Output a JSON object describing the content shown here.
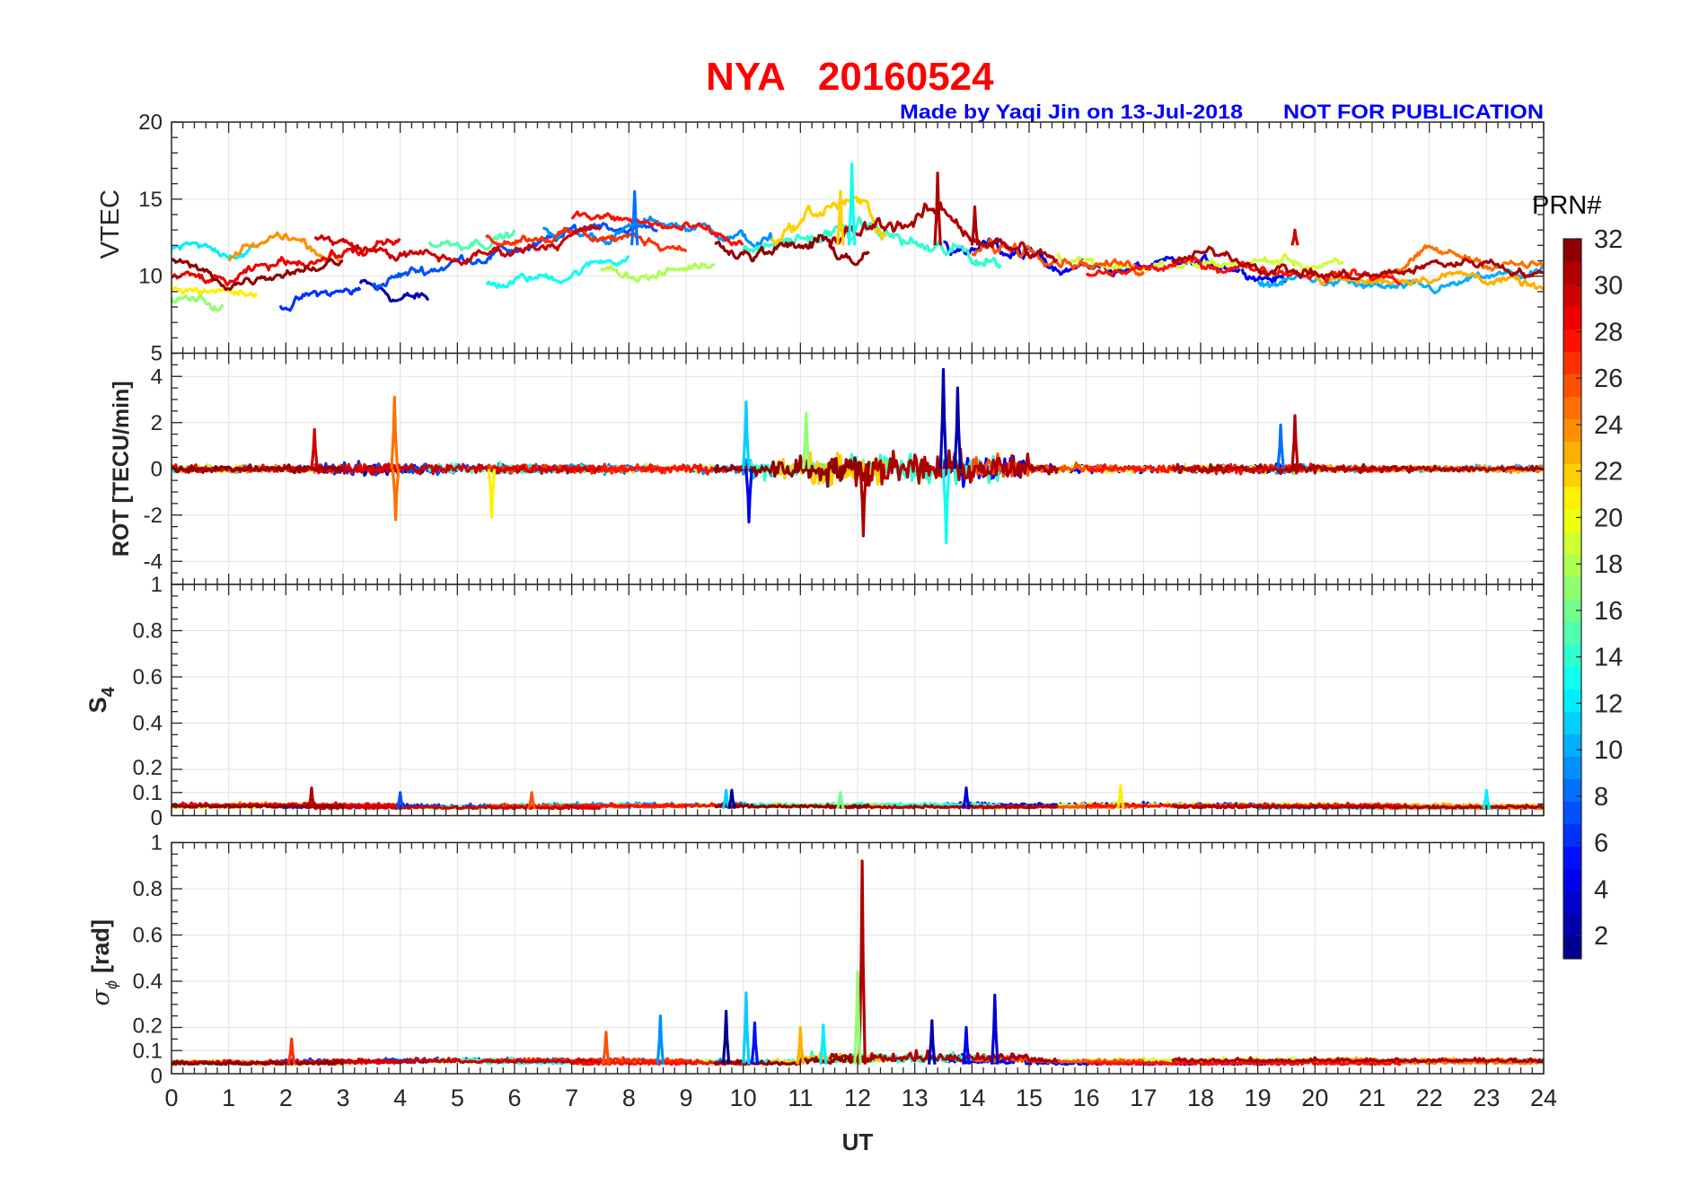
{
  "chart_data": {
    "type": "line",
    "title": {
      "station": "NYA",
      "date": "20160524"
    },
    "credit": "Made by Yaqi Jin on 13-Jul-2018",
    "notice": "NOT FOR PUBLICATION",
    "xlabel": "UT",
    "xlim": [
      0,
      24
    ],
    "xticks": [
      0,
      1,
      2,
      3,
      4,
      5,
      6,
      7,
      8,
      9,
      10,
      11,
      12,
      13,
      14,
      15,
      16,
      17,
      18,
      19,
      20,
      21,
      22,
      23,
      24
    ],
    "grid": true,
    "panels": [
      {
        "key": "vtec",
        "ylabel": "VTEC",
        "ylim": [
          5,
          20
        ],
        "yticks": [
          5,
          10,
          15,
          20
        ]
      },
      {
        "key": "rot",
        "ylabel": "ROT [TECU/min]",
        "ylim": [
          -5,
          5
        ],
        "yticks": [
          -4,
          -2,
          0,
          2,
          4
        ]
      },
      {
        "key": "s4",
        "ylabel": "S",
        "ylabel_sub": "4",
        "ylim": [
          0,
          1
        ],
        "yticks": [
          0,
          0.1,
          0.2,
          0.4,
          0.6,
          0.8,
          1
        ]
      },
      {
        "key": "sigma",
        "ylabel": "σ",
        "ylabel_sub": "ϕ",
        "ylabel_unit": "[rad]",
        "ylim": [
          0,
          1
        ],
        "yticks": [
          0,
          0.1,
          0.2,
          0.4,
          0.6,
          0.8,
          1
        ]
      }
    ],
    "colorbar": {
      "label": "PRN#",
      "clim": [
        1,
        32
      ],
      "ticks": [
        2,
        4,
        6,
        8,
        10,
        12,
        14,
        16,
        18,
        20,
        22,
        24,
        26,
        28,
        30,
        32
      ],
      "levels": 32
    },
    "series": [
      {
        "prn": 2,
        "t": [
          3.3,
          4.5
        ],
        "vtec": [
          9.5,
          8.6,
          8.5
        ]
      },
      {
        "prn": 4,
        "t": [
          13.5,
          19.5
        ],
        "vtec": [
          12,
          11.5,
          10.8,
          10.5,
          10.6,
          10.8,
          9.8
        ]
      },
      {
        "prn": 6,
        "t": [
          1.9,
          3.3
        ],
        "vtec": [
          8.2,
          8.8,
          9.0
        ]
      },
      {
        "prn": 7,
        "t": [
          3.5,
          8.5
        ],
        "vtec": [
          9.5,
          10.5,
          11.5,
          12,
          13.5,
          13
        ]
      },
      {
        "prn": 9,
        "t": [
          6.5,
          10.5
        ],
        "vtec": [
          13,
          12.5,
          13.5,
          13,
          12
        ]
      },
      {
        "prn": 10,
        "t": [
          19,
          24
        ],
        "vtec": [
          9.5,
          9.8,
          9.2,
          9,
          9.8,
          10.2
        ]
      },
      {
        "prn": 12,
        "t": [
          0,
          1.5
        ],
        "vtec": [
          12,
          11.5,
          11.8
        ]
      },
      {
        "prn": 13,
        "t": [
          5.5,
          8
        ],
        "vtec": [
          9.5,
          10,
          11.5
        ]
      },
      {
        "prn": 14,
        "t": [
          10,
          14.5
        ],
        "vtec": [
          11.5,
          12.5,
          13,
          11.5,
          11
        ]
      },
      {
        "prn": 15,
        "t": [
          4.5,
          6
        ],
        "vtec": [
          12,
          12.8
        ]
      },
      {
        "prn": 17,
        "t": [
          0,
          0.9
        ],
        "vtec": [
          8.7,
          8
        ]
      },
      {
        "prn": 18,
        "t": [
          7.5,
          9.5
        ],
        "vtec": [
          10.5,
          10,
          11
        ]
      },
      {
        "prn": 19,
        "t": [
          15.5,
          20.5
        ],
        "vtec": [
          11.5,
          10.8,
          10.5,
          10.8,
          11,
          10.5
        ]
      },
      {
        "prn": 21,
        "t": [
          0,
          1.5
        ],
        "vtec": [
          9,
          9.2,
          8.8
        ]
      },
      {
        "prn": 22,
        "t": [
          10.5,
          12.5
        ],
        "vtec": [
          12.5,
          14,
          15,
          13
        ]
      },
      {
        "prn": 23,
        "t": [
          20,
          24
        ],
        "vtec": [
          9.8,
          9.6,
          10.2,
          10,
          9
        ]
      },
      {
        "prn": 24,
        "t": [
          1,
          3
        ],
        "vtec": [
          11,
          12.8,
          11
        ]
      },
      {
        "prn": 25,
        "t": [
          21,
          24
        ],
        "vtec": [
          10,
          11.5,
          11,
          10.5
        ]
      },
      {
        "prn": 26,
        "t": [
          14,
          17
        ],
        "vtec": [
          11.5,
          12,
          11,
          10.5
        ]
      },
      {
        "prn": 27,
        "t": [
          5.5,
          9
        ],
        "vtec": [
          12.5,
          12.8,
          12.5,
          12
        ]
      },
      {
        "prn": 28,
        "t": [
          7,
          10
        ],
        "vtec": [
          14,
          13.5,
          13,
          12
        ]
      },
      {
        "prn": 29,
        "t": [
          0,
          4
        ],
        "vtec": [
          10,
          9.5,
          11,
          11.5,
          12
        ]
      },
      {
        "prn": 28,
        "t": [
          16,
          21.5
        ],
        "vtec": [
          10,
          10.5,
          10.8,
          10.5,
          10.2,
          9.8
        ]
      },
      {
        "prn": 30,
        "t": [
          2.5,
          7.5
        ],
        "vtec": [
          12.5,
          11.5,
          11,
          12,
          13
        ]
      },
      {
        "prn": 31,
        "t": [
          11.5,
          15.5
        ],
        "vtec": [
          12,
          13.5,
          14,
          12,
          11
        ]
      },
      {
        "prn": 32,
        "t": [
          0,
          3
        ],
        "vtec": [
          11,
          9.5,
          10.5,
          11
        ]
      },
      {
        "prn": 32,
        "t": [
          9.5,
          12.2
        ],
        "vtec": [
          12,
          11.5,
          12,
          11
        ]
      },
      {
        "prn": 31,
        "t": [
          17.5,
          24
        ],
        "vtec": [
          11,
          11.5,
          10.5,
          10,
          10,
          10.8,
          11,
          10
        ]
      }
    ],
    "rot_envelope_by_hour": [
      0.3,
      0.3,
      0.35,
      0.5,
      0.5,
      0.4,
      0.35,
      0.35,
      0.3,
      0.35,
      0.8,
      1.2,
      1.3,
      1.4,
      1.1,
      0.4,
      0.3,
      0.35,
      0.35,
      0.4,
      0.3,
      0.25,
      0.25,
      0.25,
      0.25
    ],
    "s4_baseline": 0.03,
    "sigma_baseline": 0.04,
    "spikes": {
      "vtec": [
        {
          "prn": 13,
          "t": 11.9,
          "v": 17.3
        },
        {
          "prn": 31,
          "t": 13.4,
          "v": 16.7
        },
        {
          "prn": 8,
          "t": 8.1,
          "v": 15.5
        },
        {
          "prn": 22,
          "t": 11.7,
          "v": 15.5
        },
        {
          "prn": 31,
          "t": 14.05,
          "v": 14.5
        },
        {
          "prn": 30,
          "t": 19.65,
          "v": 13
        }
      ],
      "rot": [
        {
          "prn": 2,
          "t": 13.5,
          "v": 4.3
        },
        {
          "prn": 2,
          "t": 13.75,
          "v": 3.5
        },
        {
          "prn": 25,
          "t": 3.9,
          "v": 3.1
        },
        {
          "prn": 25,
          "t": 3.92,
          "v": -2.2
        },
        {
          "prn": 11,
          "t": 10.05,
          "v": 2.9
        },
        {
          "prn": 13,
          "t": 13.55,
          "v": -3.2
        },
        {
          "prn": 31,
          "t": 12.1,
          "v": -2.9
        },
        {
          "prn": 4,
          "t": 10.1,
          "v": -2.3
        },
        {
          "prn": 31,
          "t": 19.65,
          "v": 2.3
        },
        {
          "prn": 21,
          "t": 5.6,
          "v": -2.1
        },
        {
          "prn": 8,
          "t": 19.4,
          "v": 1.9
        },
        {
          "prn": 17,
          "t": 11.1,
          "v": 2.4
        },
        {
          "prn": 30,
          "t": 2.5,
          "v": 1.7
        }
      ],
      "s4": [
        {
          "prn": 31,
          "t": 2.45,
          "v": 0.12
        },
        {
          "prn": 3,
          "t": 13.9,
          "v": 0.12
        },
        {
          "prn": 21,
          "t": 16.6,
          "v": 0.13
        },
        {
          "prn": 12,
          "t": 23.0,
          "v": 0.11
        },
        {
          "prn": 11,
          "t": 9.7,
          "v": 0.11
        },
        {
          "prn": 1,
          "t": 9.8,
          "v": 0.11
        },
        {
          "prn": 7,
          "t": 4.0,
          "v": 0.1
        },
        {
          "prn": 16,
          "t": 11.7,
          "v": 0.1
        },
        {
          "prn": 26,
          "t": 6.3,
          "v": 0.1
        }
      ],
      "sigma": [
        {
          "prn": 31,
          "t": 12.08,
          "v": 0.92
        },
        {
          "prn": 17,
          "t": 12.0,
          "v": 0.44
        },
        {
          "prn": 11,
          "t": 10.05,
          "v": 0.35
        },
        {
          "prn": 3,
          "t": 14.4,
          "v": 0.34
        },
        {
          "prn": 1,
          "t": 9.7,
          "v": 0.27
        },
        {
          "prn": 5,
          "t": 10.2,
          "v": 0.22
        },
        {
          "prn": 9,
          "t": 8.55,
          "v": 0.25
        },
        {
          "prn": 2,
          "t": 13.3,
          "v": 0.23
        },
        {
          "prn": 4,
          "t": 13.9,
          "v": 0.2
        },
        {
          "prn": 12,
          "t": 11.4,
          "v": 0.21
        },
        {
          "prn": 26,
          "t": 7.6,
          "v": 0.18
        },
        {
          "prn": 23,
          "t": 11,
          "v": 0.2
        },
        {
          "prn": 27,
          "t": 2.1,
          "v": 0.15
        }
      ]
    }
  }
}
